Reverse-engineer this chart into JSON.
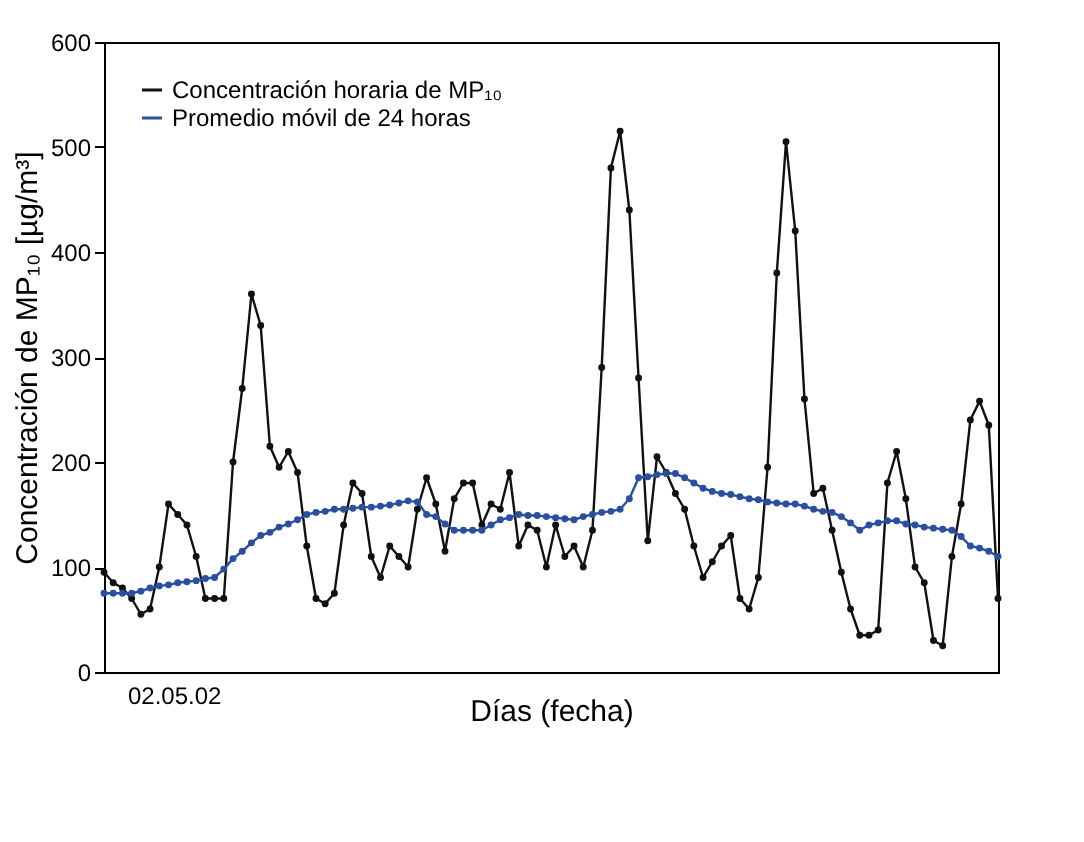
{
  "chart_data": {
    "type": "line",
    "xlabel": "Días (fecha)",
    "ylabel": "Concentración de MP₁₀ [µg/m³]",
    "annotations": [
      "02.05.02"
    ],
    "tick_labels": "y",
    "categories": [
      null,
      null,
      null,
      null,
      null,
      null,
      null,
      null,
      null,
      null,
      null,
      null,
      null,
      null,
      null,
      null,
      null,
      null,
      null,
      null,
      null,
      null,
      null,
      null,
      null,
      null,
      null,
      null,
      null,
      null,
      null,
      null,
      null,
      null,
      null,
      null,
      null,
      null,
      null,
      null,
      null,
      null,
      null,
      null,
      null,
      null,
      null,
      null,
      null,
      null,
      null,
      null,
      null,
      null,
      null,
      null,
      null,
      null,
      null,
      null,
      null,
      null,
      null,
      null,
      null,
      null,
      null,
      null,
      null,
      null,
      null,
      null,
      null,
      null,
      null,
      null,
      null,
      null,
      null,
      null,
      null,
      null,
      null,
      null,
      null,
      null,
      null,
      null,
      null,
      null,
      null,
      null,
      null,
      null,
      null,
      null,
      null,
      null
    ],
    "ylim": [
      0,
      600
    ],
    "yticks": [
      0,
      100,
      200,
      300,
      400,
      500,
      600
    ],
    "grid": false,
    "legend": "top left",
    "marker": "circle",
    "line_style": "solid",
    "series": [
      {
        "name": "Concentración horaria de MP₁₀",
        "color": "#111111",
        "values": [
          95,
          85,
          80,
          70,
          55,
          60,
          100,
          160,
          150,
          140,
          110,
          70,
          70,
          70,
          200,
          270,
          360,
          330,
          215,
          195,
          210,
          190,
          120,
          70,
          65,
          75,
          140,
          180,
          170,
          110,
          90,
          120,
          110,
          100,
          155,
          185,
          160,
          115,
          165,
          180,
          180,
          140,
          160,
          155,
          190,
          120,
          140,
          135,
          100,
          140,
          110,
          120,
          100,
          135,
          290,
          480,
          515,
          440,
          280,
          125,
          205,
          190,
          170,
          155,
          120,
          90,
          105,
          120,
          130,
          70,
          60,
          90,
          195,
          380,
          505,
          420,
          260,
          170,
          175,
          135,
          95,
          60,
          35,
          35,
          40,
          180,
          210,
          165,
          100,
          85,
          30,
          25,
          110,
          160,
          240,
          258,
          235,
          70
        ]
      },
      {
        "name": "Promedio móvil de 24 horas",
        "color": "#2b4fa0",
        "values": [
          75,
          75,
          75,
          75,
          77,
          80,
          82,
          83,
          85,
          86,
          87,
          89,
          90,
          98,
          108,
          115,
          123,
          130,
          133,
          138,
          141,
          145,
          150,
          152,
          153,
          155,
          155,
          156,
          157,
          157,
          158,
          159,
          161,
          163,
          162,
          150,
          148,
          141,
          135,
          135,
          135,
          135,
          140,
          145,
          147,
          150,
          149,
          149,
          148,
          147,
          146,
          145,
          148,
          150,
          152,
          153,
          155,
          165,
          185,
          186,
          188,
          189,
          189,
          185,
          180,
          175,
          172,
          170,
          169,
          167,
          165,
          164,
          162,
          161,
          160,
          160,
          158,
          155,
          153,
          152,
          148,
          142,
          135,
          140,
          142,
          144,
          144,
          141,
          140,
          138,
          137,
          136,
          135,
          129,
          120,
          118,
          115,
          110
        ]
      }
    ]
  }
}
